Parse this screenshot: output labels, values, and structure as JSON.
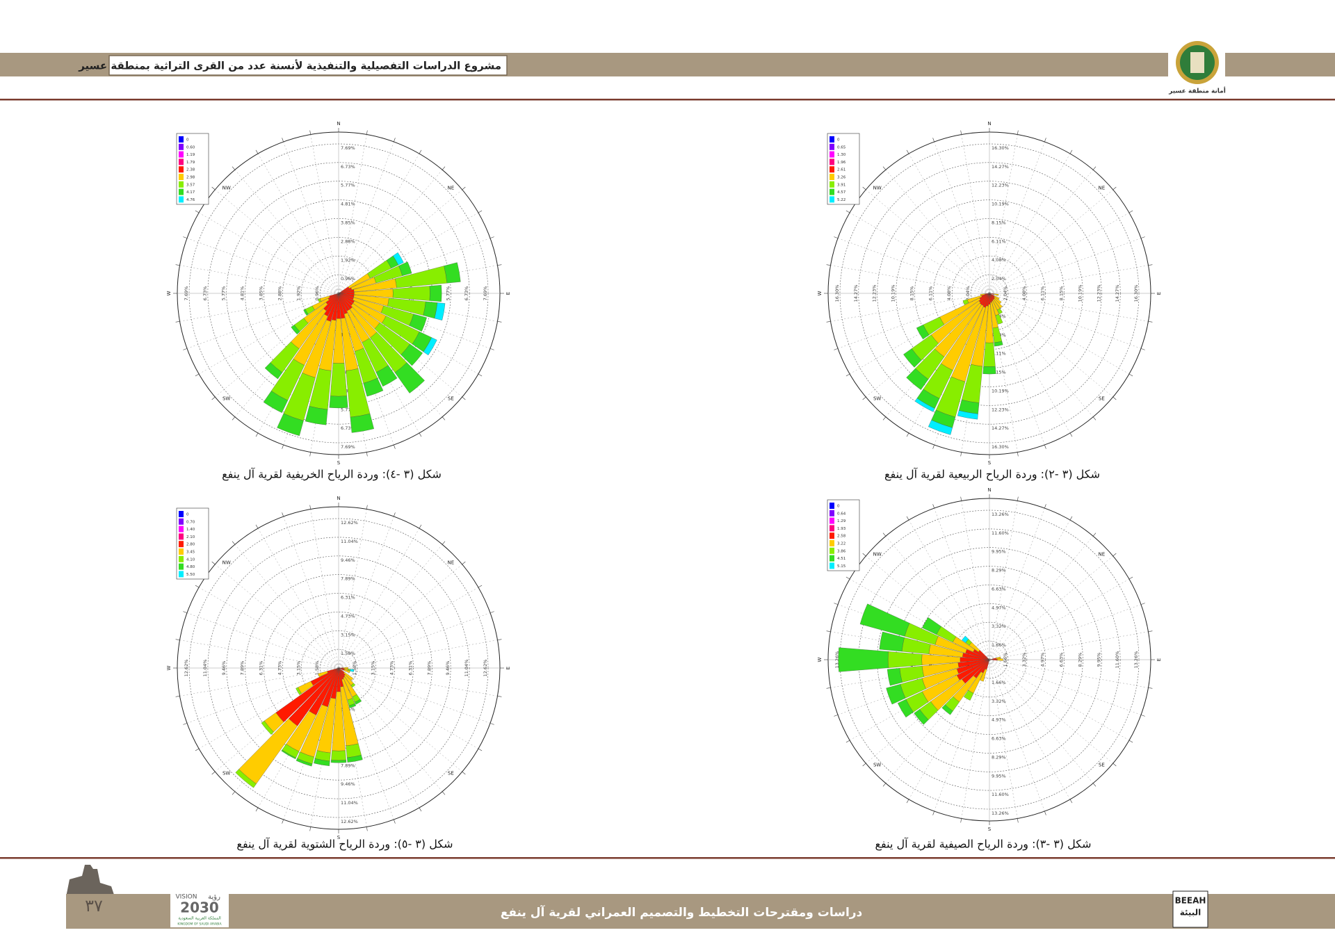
{
  "header": {
    "title": "مشروع الدراسات التفصيلية والتنفيذية لأنسنة عدد من القرى التراثية بمنطقة عسير",
    "logo_caption": "أمانة منطقة عسير"
  },
  "footer": {
    "title": "دراسات ومقترحات التخطيط والتصميم العمراني لقرية آل ينفع",
    "page_number": "٣٧",
    "vision": "VISION",
    "vision_ar": "رؤية",
    "vision_year": "2030",
    "kingdom_ar": "المملكة العربية السعودية",
    "kingdom_en": "KINGDOM OF SAUDI ARABIA",
    "beeah": "BEEAH",
    "beeah_ar": "البيئة"
  },
  "chart_data": [
    {
      "type": "windrose",
      "caption": "شكل (٣ -٤):   وردة الرياح الخريفية  لقرية آل ينفع",
      "direction_labels": [
        "N",
        "NE",
        "E",
        "SE",
        "S",
        "SW",
        "W",
        "NW"
      ],
      "directions": [
        60,
        70,
        80,
        90,
        100,
        110,
        120,
        130,
        140,
        150,
        160,
        170,
        180,
        190,
        200,
        210,
        220,
        230,
        240,
        250
      ],
      "rlim": [
        0,
        7.69
      ],
      "rticks": [
        {
          "value": 0.96,
          "label": "0.96%"
        },
        {
          "value": 1.92,
          "label": "1.92%"
        },
        {
          "value": 2.88,
          "label": "2.88%"
        },
        {
          "value": 3.85,
          "label": "3.85%"
        },
        {
          "value": 4.81,
          "label": "4.81%"
        },
        {
          "value": 5.77,
          "label": "5.77%"
        },
        {
          "value": 6.73,
          "label": "6.73%"
        },
        {
          "value": 7.69,
          "label": "7.69%"
        }
      ],
      "series": [
        {
          "name": "0",
          "color": "#0000ff",
          "values": [
            0,
            0,
            0,
            0,
            0,
            0,
            0,
            0,
            0,
            0,
            0,
            0,
            0,
            0,
            0,
            0,
            0,
            0,
            0,
            0
          ]
        },
        {
          "name": "0.60",
          "color": "#8000ff",
          "values": [
            0,
            0,
            0,
            0,
            0,
            0,
            0,
            0,
            0,
            0,
            0,
            0,
            0,
            0,
            0,
            0,
            0,
            0,
            0,
            0
          ]
        },
        {
          "name": "1.19",
          "color": "#ff00ff",
          "values": [
            0,
            0,
            0,
            0,
            0,
            0,
            0,
            0,
            0,
            0,
            0,
            0,
            0,
            0,
            0,
            0,
            0,
            0,
            0,
            0
          ]
        },
        {
          "name": "1.79",
          "color": "#ff0080",
          "values": [
            0,
            0,
            0,
            0,
            0,
            0,
            0,
            0,
            0,
            0,
            0,
            0,
            0,
            0,
            0,
            0,
            0,
            0,
            0,
            0
          ]
        },
        {
          "name": "2.38",
          "color": "#ff1a00",
          "values": [
            0.6,
            0.7,
            0.8,
            0.8,
            0.8,
            0.8,
            0.9,
            0.9,
            1.0,
            1.0,
            1.1,
            1.3,
            1.3,
            1.4,
            1.5,
            1.3,
            1.1,
            0.8,
            0.6,
            0.5
          ]
        },
        {
          "name": "2.98",
          "color": "#ffcc00",
          "values": [
            1.2,
            1.3,
            2.2,
            2.0,
            1.8,
            1.6,
            1.8,
            1.7,
            1.8,
            1.8,
            2.0,
            2.7,
            2.3,
            2.6,
            3.0,
            2.8,
            2.4,
            1.4,
            0.9,
            0.5
          ]
        },
        {
          "name": "3.57",
          "color": "#88ee00",
          "values": [
            1.2,
            1.4,
            2.6,
            1.9,
            1.9,
            1.6,
            1.9,
            1.9,
            2.2,
            1.7,
            1.7,
            2.4,
            1.7,
            2.0,
            2.3,
            2.0,
            1.5,
            0.6,
            0.4,
            0.1
          ]
        },
        {
          "name": "4.17",
          "color": "#33dd22",
          "values": [
            0.4,
            0.5,
            0.7,
            0.6,
            0.6,
            0.7,
            0.7,
            0.8,
            1.3,
            0.8,
            0.7,
            0.8,
            0.6,
            0.8,
            0.8,
            0.7,
            0.4,
            0.2,
            0.1,
            0
          ]
        },
        {
          "name": "4.76",
          "color": "#00eeff",
          "values": [
            0.3,
            0,
            0,
            0,
            0.4,
            0,
            0.3,
            0,
            0,
            0,
            0,
            0,
            0,
            0,
            0,
            0,
            0,
            0,
            0,
            0
          ]
        }
      ]
    },
    {
      "type": "windrose",
      "caption": "شكل (٣ -٢):   وردة الرياح الربيعية لقرية آل ينفع",
      "direction_labels": [
        "N",
        "NE",
        "E",
        "SE",
        "S",
        "SW",
        "W",
        "NW"
      ],
      "directions": [
        100,
        120,
        130,
        140,
        150,
        160,
        170,
        180,
        190,
        200,
        210,
        220,
        230,
        240,
        250,
        260
      ],
      "rlim": [
        0,
        16.3
      ],
      "rticks": [
        {
          "value": 2.04,
          "label": "2.04%"
        },
        {
          "value": 4.08,
          "label": "4.08%"
        },
        {
          "value": 6.11,
          "label": "6.11%"
        },
        {
          "value": 8.15,
          "label": "8.15%"
        },
        {
          "value": 10.19,
          "label": "10.19%"
        },
        {
          "value": 12.23,
          "label": "12.23%"
        },
        {
          "value": 14.27,
          "label": "14.27%"
        },
        {
          "value": 16.3,
          "label": "16.30%"
        }
      ],
      "series": [
        {
          "name": "0",
          "color": "#0000ff",
          "values": [
            0,
            0,
            0,
            0,
            0,
            0,
            0,
            0,
            0,
            0,
            0,
            0,
            0,
            0,
            0,
            0
          ]
        },
        {
          "name": "0.65",
          "color": "#8000ff",
          "values": [
            0,
            0,
            0,
            0,
            0,
            0,
            0,
            0,
            0,
            0,
            0,
            0,
            0,
            0,
            0,
            0
          ]
        },
        {
          "name": "1.30",
          "color": "#ff00ff",
          "values": [
            0,
            0,
            0,
            0,
            0,
            0,
            0,
            0,
            0,
            0,
            0,
            0,
            0,
            0,
            0,
            0
          ]
        },
        {
          "name": "1.96",
          "color": "#ff0080",
          "values": [
            0,
            0,
            0,
            0,
            0,
            0,
            0,
            0,
            0,
            0,
            0,
            0,
            0,
            0,
            0,
            0
          ]
        },
        {
          "name": "2.61",
          "color": "#ff1a00",
          "values": [
            0.5,
            0.6,
            0.7,
            0.8,
            0.8,
            0.9,
            1.0,
            1.2,
            1.4,
            1.6,
            1.5,
            1.5,
            1.4,
            1.2,
            0.9,
            0.5
          ]
        },
        {
          "name": "3.26",
          "color": "#ffcc00",
          "values": [
            0.5,
            0.6,
            0.9,
            1.2,
            1.2,
            1.6,
            2.8,
            4.2,
            6.6,
            8.4,
            7.8,
            7.0,
            6.4,
            4.8,
            1.6,
            0.5
          ]
        },
        {
          "name": "3.91",
          "color": "#88ee00",
          "values": [
            0,
            0,
            0,
            0,
            0.5,
            1.0,
            1.6,
            2.6,
            4.0,
            4.0,
            3.4,
            3.0,
            2.6,
            2.0,
            0.5,
            0
          ]
        },
        {
          "name": "4.57",
          "color": "#33dd22",
          "values": [
            0,
            0,
            0,
            0,
            0,
            0,
            0.4,
            0.8,
            1.2,
            1.2,
            1.2,
            1.4,
            1.1,
            0.8,
            0,
            0
          ]
        },
        {
          "name": "5.22",
          "color": "#00eeff",
          "values": [
            0,
            0,
            0,
            0,
            0,
            0,
            0,
            0,
            0.6,
            0.8,
            0.4,
            0,
            0,
            0,
            0,
            0
          ]
        }
      ]
    },
    {
      "type": "windrose",
      "caption": "شكل (٣ -٥):   وردة الرياح الشتوية  لقرية آل ينفع",
      "direction_labels": [
        "N",
        "NE",
        "E",
        "SE",
        "S",
        "SW",
        "W",
        "NW"
      ],
      "directions": [
        90,
        100,
        110,
        130,
        140,
        150,
        160,
        170,
        180,
        190,
        200,
        210,
        220,
        230,
        240,
        250
      ],
      "rlim": [
        0,
        12.62
      ],
      "rticks": [
        {
          "value": 1.58,
          "label": "1.58%"
        },
        {
          "value": 3.15,
          "label": "3.15%"
        },
        {
          "value": 4.73,
          "label": "4.73%"
        },
        {
          "value": 6.31,
          "label": "6.31%"
        },
        {
          "value": 7.89,
          "label": "7.89%"
        },
        {
          "value": 9.46,
          "label": "9.46%"
        },
        {
          "value": 11.04,
          "label": "11.04%"
        },
        {
          "value": 12.62,
          "label": "12.62%"
        }
      ],
      "series": [
        {
          "name": "0",
          "color": "#0000ff",
          "values": [
            0,
            0,
            0,
            0,
            0,
            0,
            0,
            0,
            0,
            0,
            0,
            0,
            0,
            0,
            0,
            0
          ]
        },
        {
          "name": "0.70",
          "color": "#8000ff",
          "values": [
            0,
            0,
            0,
            0,
            0,
            0,
            0,
            0,
            0,
            0,
            0,
            0,
            0,
            0,
            0,
            0
          ]
        },
        {
          "name": "1.40",
          "color": "#ff00ff",
          "values": [
            0,
            0,
            0,
            0,
            0,
            0,
            0,
            0,
            0,
            0,
            0,
            0,
            0,
            0,
            0,
            0
          ]
        },
        {
          "name": "2.10",
          "color": "#ff0080",
          "values": [
            0,
            0,
            0,
            0,
            0,
            0,
            0,
            0,
            0,
            0,
            0,
            0,
            0,
            0,
            0,
            0
          ]
        },
        {
          "name": "2.80",
          "color": "#ff1a00",
          "values": [
            0.4,
            0.5,
            0.5,
            0.6,
            0.8,
            0.9,
            1.0,
            1.6,
            2.0,
            2.6,
            3.4,
            4.4,
            6.0,
            6.5,
            2.6,
            1.0
          ]
        },
        {
          "name": "3.45",
          "color": "#ffcc00",
          "values": [
            0.4,
            0.3,
            0.5,
            0.9,
            1.0,
            1.8,
            1.8,
            5.0,
            5.0,
            4.6,
            4.4,
            3.4,
            6.0,
            1.2,
            1.2,
            0.8
          ]
        },
        {
          "name": "4.10",
          "color": "#88ee00",
          "values": [
            0,
            0.2,
            0,
            0,
            0.2,
            0.5,
            0.5,
            1.0,
            0.8,
            0.7,
            0.6,
            0.6,
            0.4,
            0.3,
            0.2,
            0
          ]
        },
        {
          "name": "4.80",
          "color": "#33dd22",
          "values": [
            0,
            0,
            0,
            0,
            0,
            0.2,
            0.2,
            0.4,
            0.2,
            0.4,
            0.2,
            0.1,
            0,
            0,
            0,
            0
          ]
        },
        {
          "name": "5.50",
          "color": "#00eeff",
          "values": [
            0,
            0.3,
            0,
            0,
            0,
            0,
            0,
            0,
            0,
            0,
            0,
            0,
            0,
            0,
            0,
            0
          ]
        }
      ]
    },
    {
      "type": "windrose",
      "caption": "شكل (٣ -٣):   وردة الرياح الصيفية  لقرية آل ينفع",
      "direction_labels": [
        "N",
        "NE",
        "E",
        "SE",
        "S",
        "SW",
        "W",
        "NW"
      ],
      "directions": [
        80,
        90,
        200,
        210,
        220,
        230,
        240,
        250,
        260,
        270,
        280,
        290,
        300,
        310
      ],
      "rlim": [
        0,
        13.26
      ],
      "rticks": [
        {
          "value": 1.66,
          "label": "1.66%"
        },
        {
          "value": 3.32,
          "label": "3.32%"
        },
        {
          "value": 4.97,
          "label": "4.97%"
        },
        {
          "value": 6.63,
          "label": "6.63%"
        },
        {
          "value": 8.29,
          "label": "8.29%"
        },
        {
          "value": 9.95,
          "label": "9.95%"
        },
        {
          "value": 11.6,
          "label": "11.60%"
        },
        {
          "value": 13.26,
          "label": "13.26%"
        }
      ],
      "series": [
        {
          "name": "0",
          "color": "#0000ff",
          "values": [
            0,
            0,
            0,
            0,
            0,
            0,
            0,
            0,
            0,
            0,
            0,
            0,
            0,
            0
          ]
        },
        {
          "name": "0.64",
          "color": "#8000ff",
          "values": [
            0,
            0,
            0,
            0,
            0,
            0,
            0,
            0,
            0,
            0,
            0,
            0,
            0,
            0
          ]
        },
        {
          "name": "1.29",
          "color": "#ff00ff",
          "values": [
            0,
            0,
            0,
            0,
            0,
            0,
            0,
            0,
            0,
            0,
            0,
            0,
            0,
            0
          ]
        },
        {
          "name": "1.93",
          "color": "#ff0080",
          "values": [
            0,
            0,
            0,
            0,
            0,
            0,
            0,
            0,
            0,
            0,
            0,
            0,
            0,
            0
          ]
        },
        {
          "name": "2.58",
          "color": "#ff1a00",
          "values": [
            0.6,
            0.7,
            0.9,
            1.3,
            2.0,
            3.0,
            3.2,
            3.0,
            2.8,
            2.6,
            2.4,
            2.2,
            1.6,
            1.2
          ]
        },
        {
          "name": "3.22",
          "color": "#ffcc00",
          "values": [
            0.4,
            0.5,
            1.1,
            2.0,
            2.6,
            3.4,
            3.4,
            3.2,
            3.2,
            3.4,
            3.0,
            2.8,
            2.0,
            1.0
          ]
        },
        {
          "name": "3.86",
          "color": "#88ee00",
          "values": [
            0,
            0,
            0,
            0.7,
            1.0,
            1.2,
            1.6,
            2.0,
            2.0,
            3.0,
            2.4,
            2.8,
            1.6,
            0.4
          ]
        },
        {
          "name": "4.51",
          "color": "#33dd22",
          "values": [
            0,
            0,
            0,
            0,
            0.4,
            0.6,
            0.8,
            1.3,
            1.1,
            4.4,
            2.0,
            4.1,
            1.4,
            0
          ]
        },
        {
          "name": "5.15",
          "color": "#00eeff",
          "values": [
            0,
            0,
            0,
            0,
            0,
            0,
            0,
            0,
            0,
            0,
            0,
            0,
            0,
            0.4
          ]
        }
      ]
    }
  ]
}
